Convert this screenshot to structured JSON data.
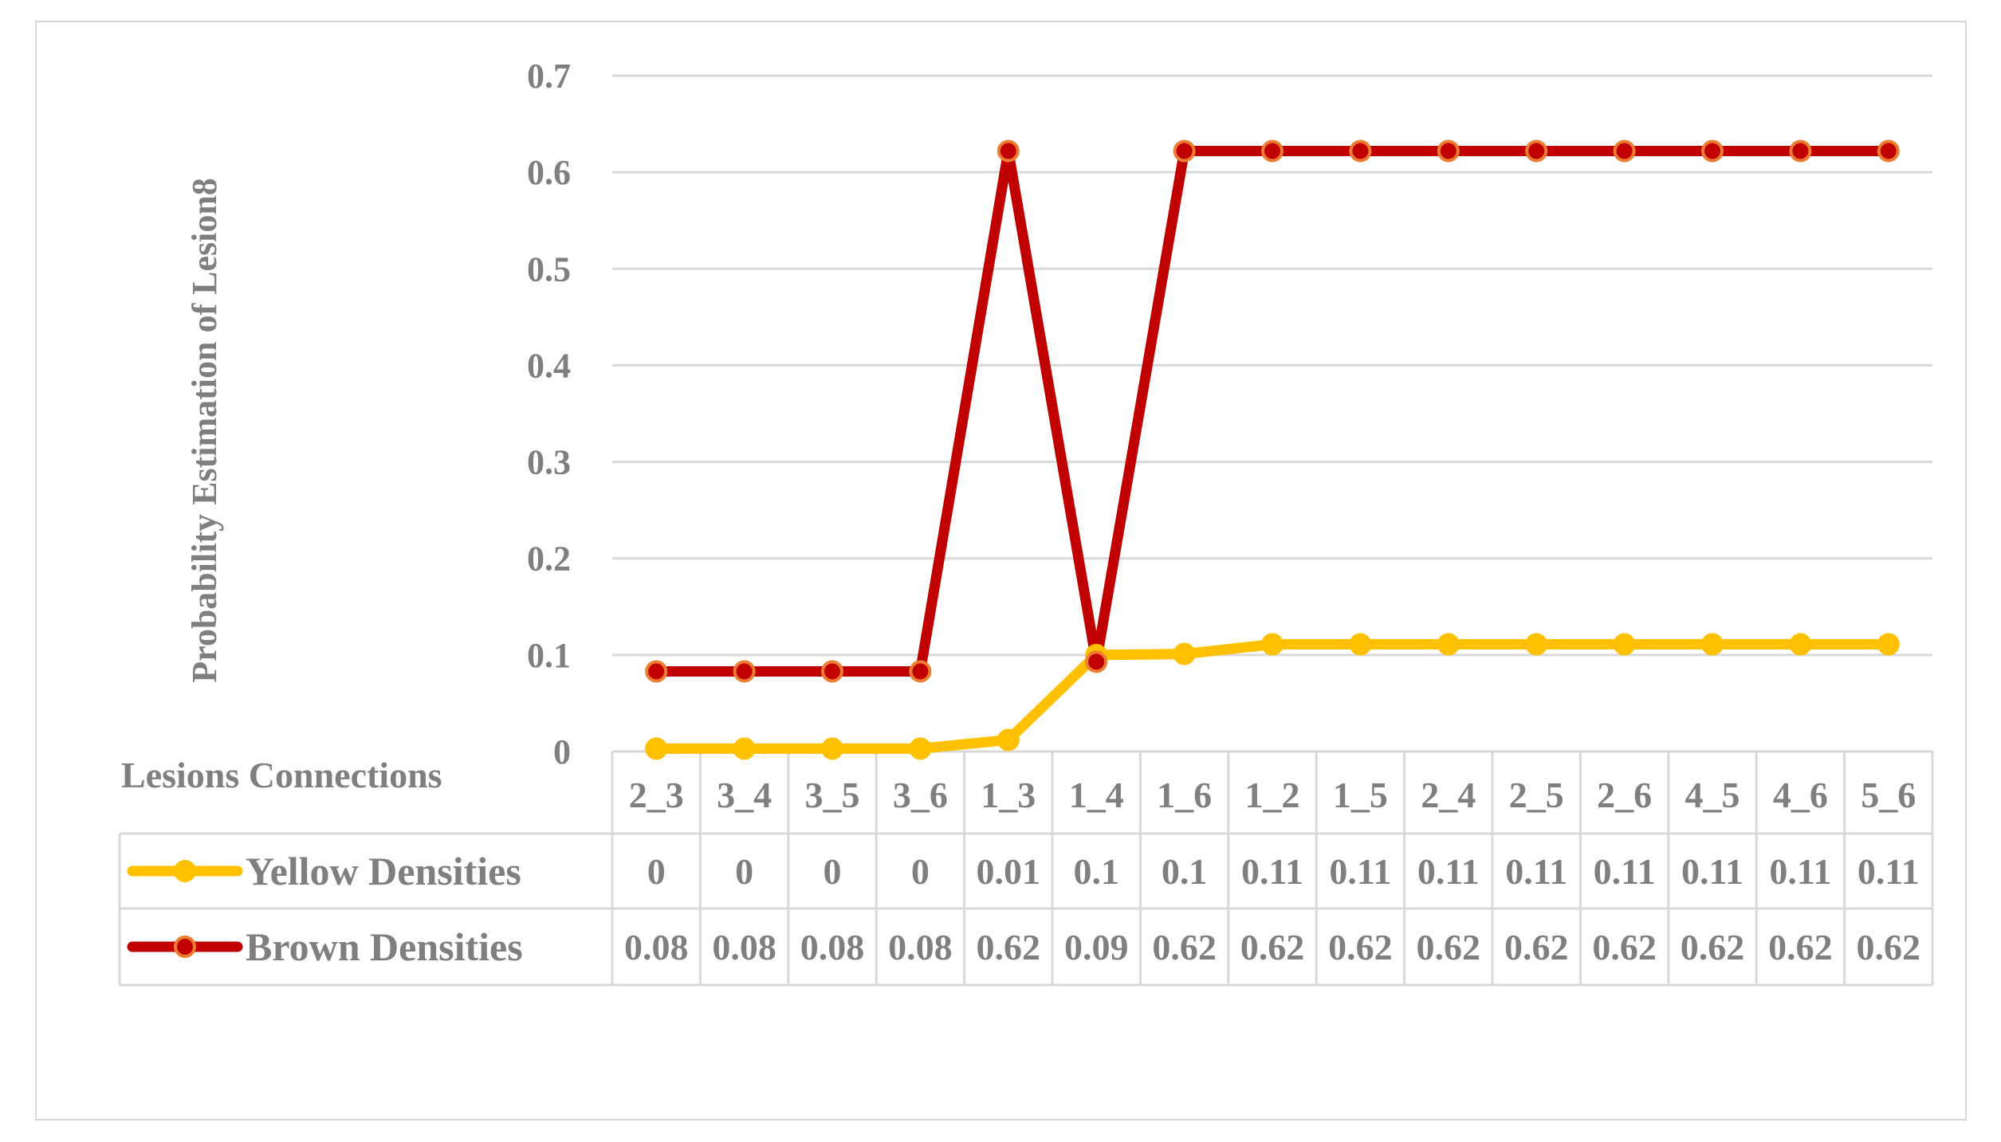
{
  "chart_data": {
    "type": "line",
    "title": "",
    "ylabel": "Probability Estimation of Lesion8",
    "xlabel": "Lesions Connections",
    "ylim": [
      0,
      0.7
    ],
    "yticks": [
      "0",
      "0.1",
      "0.2",
      "0.3",
      "0.4",
      "0.5",
      "0.6",
      "0.7"
    ],
    "grid": true,
    "legend": "data-table",
    "categories": [
      "2_3",
      "3_4",
      "3_5",
      "3_6",
      "1_3",
      "1_4",
      "1_6",
      "1_2",
      "1_5",
      "2_4",
      "2_5",
      "2_6",
      "4_5",
      "4_6",
      "5_6"
    ],
    "series": [
      {
        "name": "Yellow Densities",
        "color": "#ffc000",
        "marker_edge": "#ffc000",
        "labels": [
          "0",
          "0",
          "0",
          "0",
          "0.01",
          "0.1",
          "0.1",
          "0.11",
          "0.11",
          "0.11",
          "0.11",
          "0.11",
          "0.11",
          "0.11",
          "0.11"
        ],
        "values": [
          0.003,
          0.003,
          0.003,
          0.003,
          0.012,
          0.1,
          0.101,
          0.111,
          0.111,
          0.111,
          0.111,
          0.111,
          0.111,
          0.111,
          0.111
        ]
      },
      {
        "name": "Brown Densities",
        "color": "#c00000",
        "marker_edge": "#ed7d31",
        "labels": [
          "0.08",
          "0.08",
          "0.08",
          "0.08",
          "0.62",
          "0.09",
          "0.62",
          "0.62",
          "0.62",
          "0.62",
          "0.62",
          "0.62",
          "0.62",
          "0.62",
          "0.62"
        ],
        "values": [
          0.083,
          0.083,
          0.083,
          0.083,
          0.622,
          0.093,
          0.622,
          0.622,
          0.622,
          0.622,
          0.622,
          0.622,
          0.622,
          0.622,
          0.622
        ]
      }
    ]
  }
}
